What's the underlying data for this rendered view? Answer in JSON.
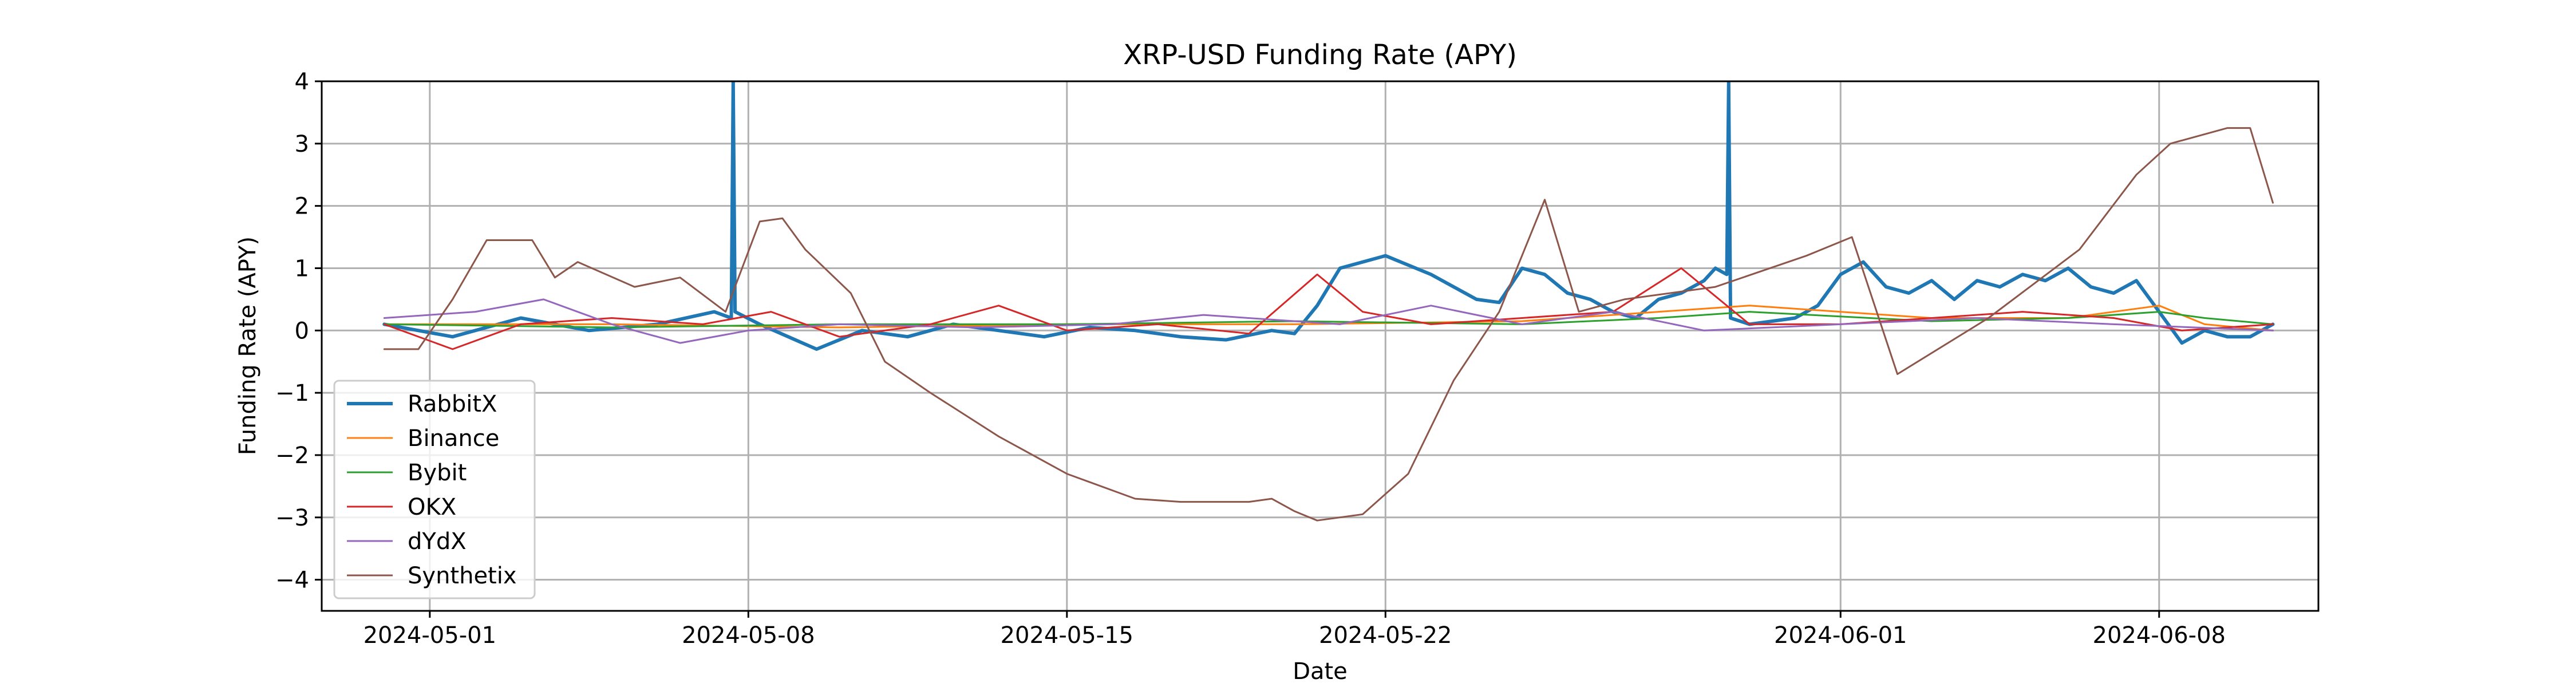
{
  "chart_data": {
    "type": "line",
    "title": "XRP-USD Funding Rate (APY)",
    "xlabel": "Date",
    "ylabel": "Funding Rate (APY)",
    "xlim": [
      "2024-04-28 15:00",
      "2024-06-11 12:00"
    ],
    "ylim": [
      -4.5,
      4
    ],
    "x_ticks": [
      "2024-05-01",
      "2024-05-08",
      "2024-05-15",
      "2024-05-22",
      "2024-06-01",
      "2024-06-08"
    ],
    "y_ticks": [
      -4,
      -3,
      -2,
      -1,
      0,
      1,
      2,
      3,
      4
    ],
    "y_tick_labels": [
      "−4",
      "−3",
      "−2",
      "−1",
      "0",
      "1",
      "2",
      "3",
      "4"
    ],
    "grid": true,
    "legend_position": "lower-left",
    "series": [
      {
        "name": "RabbitX",
        "color": "#1f77b4",
        "width": 6,
        "x": [
          "2024-04-30 00:00",
          "2024-05-01 12:00",
          "2024-05-03 00:00",
          "2024-05-04 12:00",
          "2024-05-06 00:00",
          "2024-05-07 06:00",
          "2024-05-07 15:00",
          "2024-05-07 16:00",
          "2024-05-07 17:00",
          "2024-05-08 06:00",
          "2024-05-09 12:00",
          "2024-05-10 12:00",
          "2024-05-11 12:00",
          "2024-05-12 12:00",
          "2024-05-13 12:00",
          "2024-05-14 12:00",
          "2024-05-15 12:00",
          "2024-05-16 12:00",
          "2024-05-17 12:00",
          "2024-05-18 12:00",
          "2024-05-19 12:00",
          "2024-05-20 00:00",
          "2024-05-20 12:00",
          "2024-05-21 00:00",
          "2024-05-21 12:00",
          "2024-05-22 00:00",
          "2024-05-22 12:00",
          "2024-05-23 00:00",
          "2024-05-23 12:00",
          "2024-05-24 00:00",
          "2024-05-24 12:00",
          "2024-05-25 00:00",
          "2024-05-25 12:00",
          "2024-05-26 00:00",
          "2024-05-26 12:00",
          "2024-05-27 00:00",
          "2024-05-27 12:00",
          "2024-05-28 00:00",
          "2024-05-28 12:00",
          "2024-05-29 00:00",
          "2024-05-29 06:00",
          "2024-05-29 12:00",
          "2024-05-29 13:00",
          "2024-05-29 14:00",
          "2024-05-30 00:00",
          "2024-05-30 12:00",
          "2024-05-31 00:00",
          "2024-05-31 12:00",
          "2024-06-01 00:00",
          "2024-06-01 12:00",
          "2024-06-02 00:00",
          "2024-06-02 12:00",
          "2024-06-03 00:00",
          "2024-06-03 12:00",
          "2024-06-04 00:00",
          "2024-06-04 12:00",
          "2024-06-05 00:00",
          "2024-06-05 12:00",
          "2024-06-06 00:00",
          "2024-06-06 12:00",
          "2024-06-07 00:00",
          "2024-06-07 12:00",
          "2024-06-08 00:00",
          "2024-06-08 12:00",
          "2024-06-09 00:00",
          "2024-06-09 12:00",
          "2024-06-10 00:00",
          "2024-06-10 12:00"
        ],
        "y": [
          0.1,
          -0.1,
          0.2,
          0.0,
          0.1,
          0.3,
          0.2,
          4,
          0.3,
          0.1,
          -0.3,
          0.0,
          -0.1,
          0.1,
          0.0,
          -0.1,
          0.05,
          0.0,
          -0.1,
          -0.15,
          0.0,
          -0.05,
          0.4,
          1.0,
          1.1,
          1.2,
          1.05,
          0.9,
          0.7,
          0.5,
          0.45,
          1.0,
          0.9,
          0.6,
          0.5,
          0.3,
          0.2,
          0.5,
          0.6,
          0.8,
          1.0,
          0.9,
          4,
          0.2,
          0.1,
          0.15,
          0.2,
          0.4,
          0.9,
          1.1,
          0.7,
          0.6,
          0.8,
          0.5,
          0.8,
          0.7,
          0.9,
          0.8,
          1.0,
          0.7,
          0.6,
          0.8,
          0.3,
          -0.2,
          0.0,
          -0.1,
          -0.1,
          0.1
        ]
      },
      {
        "name": "Binance",
        "color": "#ff7f0e",
        "width": 3,
        "x": [
          "2024-04-30 00:00",
          "2024-05-05 00:00",
          "2024-05-10 00:00",
          "2024-05-15 00:00",
          "2024-05-20 00:00",
          "2024-05-25 00:00",
          "2024-05-28 00:00",
          "2024-05-30 00:00",
          "2024-06-03 00:00",
          "2024-06-06 00:00",
          "2024-06-08 00:00",
          "2024-06-09 00:00",
          "2024-06-10 12:00"
        ],
        "y": [
          0.1,
          0.1,
          0.05,
          0.1,
          0.1,
          0.15,
          0.3,
          0.4,
          0.2,
          0.2,
          0.4,
          0.1,
          0.0
        ]
      },
      {
        "name": "Bybit",
        "color": "#2ca02c",
        "width": 3,
        "x": [
          "2024-04-30 00:00",
          "2024-05-05 00:00",
          "2024-05-10 00:00",
          "2024-05-15 00:00",
          "2024-05-20 00:00",
          "2024-05-25 00:00",
          "2024-05-28 00:00",
          "2024-05-30 00:00",
          "2024-06-03 00:00",
          "2024-06-06 00:00",
          "2024-06-08 00:00",
          "2024-06-09 00:00",
          "2024-06-10 12:00"
        ],
        "y": [
          0.1,
          0.05,
          0.1,
          0.1,
          0.15,
          0.1,
          0.2,
          0.3,
          0.15,
          0.2,
          0.3,
          0.2,
          0.1
        ]
      },
      {
        "name": "OKX",
        "color": "#d62728",
        "width": 3,
        "x": [
          "2024-04-30 00:00",
          "2024-05-01 12:00",
          "2024-05-03 00:00",
          "2024-05-05 00:00",
          "2024-05-07 00:00",
          "2024-05-08 12:00",
          "2024-05-10 00:00",
          "2024-05-12 00:00",
          "2024-05-13 12:00",
          "2024-05-15 00:00",
          "2024-05-17 00:00",
          "2024-05-19 00:00",
          "2024-05-20 12:00",
          "2024-05-21 12:00",
          "2024-05-23 00:00",
          "2024-05-25 00:00",
          "2024-05-27 00:00",
          "2024-05-28 12:00",
          "2024-05-30 00:00",
          "2024-06-01 00:00",
          "2024-06-03 00:00",
          "2024-06-05 00:00",
          "2024-06-07 00:00",
          "2024-06-08 12:00",
          "2024-06-10 12:00"
        ],
        "y": [
          0.1,
          -0.3,
          0.1,
          0.2,
          0.1,
          0.3,
          -0.1,
          0.1,
          0.4,
          0.0,
          0.1,
          -0.05,
          0.9,
          0.3,
          0.1,
          0.2,
          0.3,
          1.0,
          0.1,
          0.1,
          0.2,
          0.3,
          0.2,
          0.0,
          0.1
        ]
      },
      {
        "name": "dYdX",
        "color": "#9467bd",
        "width": 3,
        "x": [
          "2024-04-30 00:00",
          "2024-05-02 00:00",
          "2024-05-03 12:00",
          "2024-05-05 00:00",
          "2024-05-06 12:00",
          "2024-05-08 00:00",
          "2024-05-10 00:00",
          "2024-05-13 00:00",
          "2024-05-16 00:00",
          "2024-05-18 00:00",
          "2024-05-21 00:00",
          "2024-05-23 00:00",
          "2024-05-25 00:00",
          "2024-05-27 00:00",
          "2024-05-29 00:00",
          "2024-06-01 00:00",
          "2024-06-04 00:00",
          "2024-06-07 00:00",
          "2024-06-10 12:00"
        ],
        "y": [
          0.2,
          0.3,
          0.5,
          0.1,
          -0.2,
          0.0,
          0.1,
          0.05,
          0.1,
          0.25,
          0.1,
          0.4,
          0.1,
          0.3,
          0.0,
          0.1,
          0.2,
          0.1,
          0.0
        ]
      },
      {
        "name": "Synthetix",
        "color": "#8c564b",
        "width": 3,
        "x": [
          "2024-04-30 00:00",
          "2024-04-30 18:00",
          "2024-05-01 12:00",
          "2024-05-02 06:00",
          "2024-05-03 06:00",
          "2024-05-03 18:00",
          "2024-05-04 06:00",
          "2024-05-05 12:00",
          "2024-05-06 12:00",
          "2024-05-07 12:00",
          "2024-05-08 06:00",
          "2024-05-08 18:00",
          "2024-05-09 06:00",
          "2024-05-10 06:00",
          "2024-05-11 00:00",
          "2024-05-12 00:00",
          "2024-05-13 12:00",
          "2024-05-15 00:00",
          "2024-05-16 12:00",
          "2024-05-17 12:00",
          "2024-05-19 00:00",
          "2024-05-19 12:00",
          "2024-05-20 00:00",
          "2024-05-20 12:00",
          "2024-05-21 12:00",
          "2024-05-22 12:00",
          "2024-05-23 12:00",
          "2024-05-24 12:00",
          "2024-05-25 12:00",
          "2024-05-26 06:00",
          "2024-05-27 06:00",
          "2024-05-29 06:00",
          "2024-05-31 06:00",
          "2024-06-01 06:00",
          "2024-06-02 06:00",
          "2024-06-04 06:00",
          "2024-06-06 06:00",
          "2024-06-07 12:00",
          "2024-06-08 06:00",
          "2024-06-09 12:00",
          "2024-06-10 00:00",
          "2024-06-10 12:00"
        ],
        "y": [
          -0.3,
          -0.3,
          0.5,
          1.45,
          1.45,
          0.85,
          1.1,
          0.7,
          0.85,
          0.3,
          1.75,
          1.8,
          1.3,
          0.6,
          -0.5,
          -1.0,
          -1.7,
          -2.3,
          -2.7,
          -2.75,
          -2.75,
          -2.7,
          -2.9,
          -3.05,
          -2.95,
          -2.3,
          -0.8,
          0.3,
          2.1,
          0.3,
          0.5,
          0.7,
          1.2,
          1.5,
          -0.7,
          0.2,
          1.3,
          2.5,
          3.0,
          3.25,
          3.25,
          2.05
        ]
      }
    ]
  }
}
